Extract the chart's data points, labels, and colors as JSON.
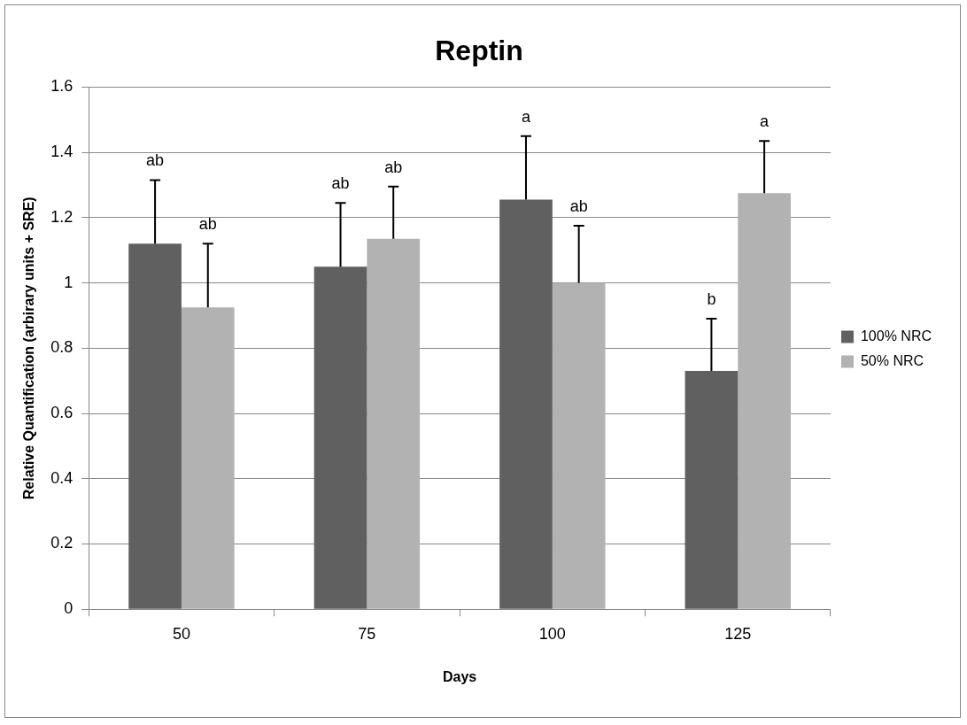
{
  "chart_data": {
    "type": "bar",
    "title": "Reptin",
    "xlabel": "Days",
    "ylabel": "Relative Quantification (arbirary units + SRE)",
    "categories": [
      "50",
      "75",
      "100",
      "125"
    ],
    "series": [
      {
        "name": "100% NRC",
        "color": "#606060",
        "values": [
          1.12,
          1.05,
          1.255,
          0.73
        ],
        "errors": [
          [
            1.12,
            1.315
          ],
          [
            1.05,
            1.245
          ],
          [
            1.255,
            1.45
          ],
          [
            0.73,
            0.89
          ]
        ]
      },
      {
        "name": "50% NRC",
        "color": "#b2b2b2",
        "values": [
          0.925,
          1.135,
          1.0,
          1.275
        ],
        "errors": [
          [
            0.925,
            1.12
          ],
          [
            1.135,
            1.295
          ],
          [
            1.0,
            1.175
          ],
          [
            1.275,
            1.435
          ]
        ]
      }
    ],
    "annotations": [
      "ab",
      "ab",
      "ab",
      "ab",
      "a",
      "ab",
      "b",
      "a"
    ],
    "ylim": [
      0,
      1.6
    ],
    "yticks": [
      0,
      0.2,
      0.4,
      0.6,
      0.8,
      1,
      1.2,
      1.4,
      1.6
    ],
    "grid": "y",
    "legend": "right"
  }
}
